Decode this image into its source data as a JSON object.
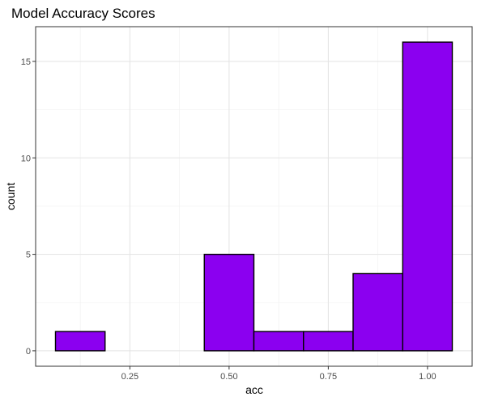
{
  "chart_data": {
    "type": "bar",
    "title": "Model Accuracy Scores",
    "xlabel": "acc",
    "ylabel": "count",
    "bins": [
      {
        "x0": 0.0625,
        "x1": 0.1875,
        "count": 1
      },
      {
        "x0": 0.1875,
        "x1": 0.3125,
        "count": 0
      },
      {
        "x0": 0.3125,
        "x1": 0.4375,
        "count": 0
      },
      {
        "x0": 0.4375,
        "x1": 0.5625,
        "count": 5
      },
      {
        "x0": 0.5625,
        "x1": 0.6875,
        "count": 1
      },
      {
        "x0": 0.6875,
        "x1": 0.8125,
        "count": 1
      },
      {
        "x0": 0.8125,
        "x1": 0.9375,
        "count": 4
      },
      {
        "x0": 0.9375,
        "x1": 1.0625,
        "count": 16
      }
    ],
    "xlim": [
      0.0125,
      1.1125
    ],
    "ylim": [
      -0.8,
      16.8
    ],
    "x_ticks": [
      {
        "value": 0.25,
        "label": "0.25"
      },
      {
        "value": 0.5,
        "label": "0.50"
      },
      {
        "value": 0.75,
        "label": "0.75"
      },
      {
        "value": 1.0,
        "label": "1.00"
      }
    ],
    "y_ticks": [
      {
        "value": 0,
        "label": "0"
      },
      {
        "value": 5,
        "label": "5"
      },
      {
        "value": 10,
        "label": "10"
      },
      {
        "value": 15,
        "label": "15"
      }
    ],
    "grid": true,
    "bar_color": "#8B00F0",
    "bar_edge_color": "#000000"
  }
}
